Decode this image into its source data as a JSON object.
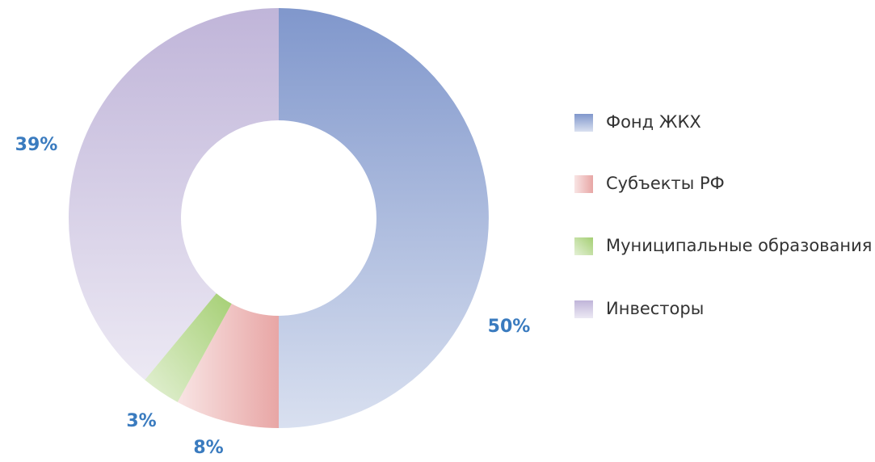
{
  "chart_data": {
    "type": "donut",
    "categories": [
      "Фонд ЖКХ",
      "Субъекты РФ",
      "Муниципальные образования",
      "Инвесторы"
    ],
    "values": [
      50,
      8,
      3,
      39
    ],
    "value_labels": [
      "50%",
      "8%",
      "3%",
      "39%"
    ],
    "colors": [
      "#8097cc",
      "#e8a6a5",
      "#a5cf74",
      "#c0b5d9"
    ],
    "legend": "right"
  }
}
